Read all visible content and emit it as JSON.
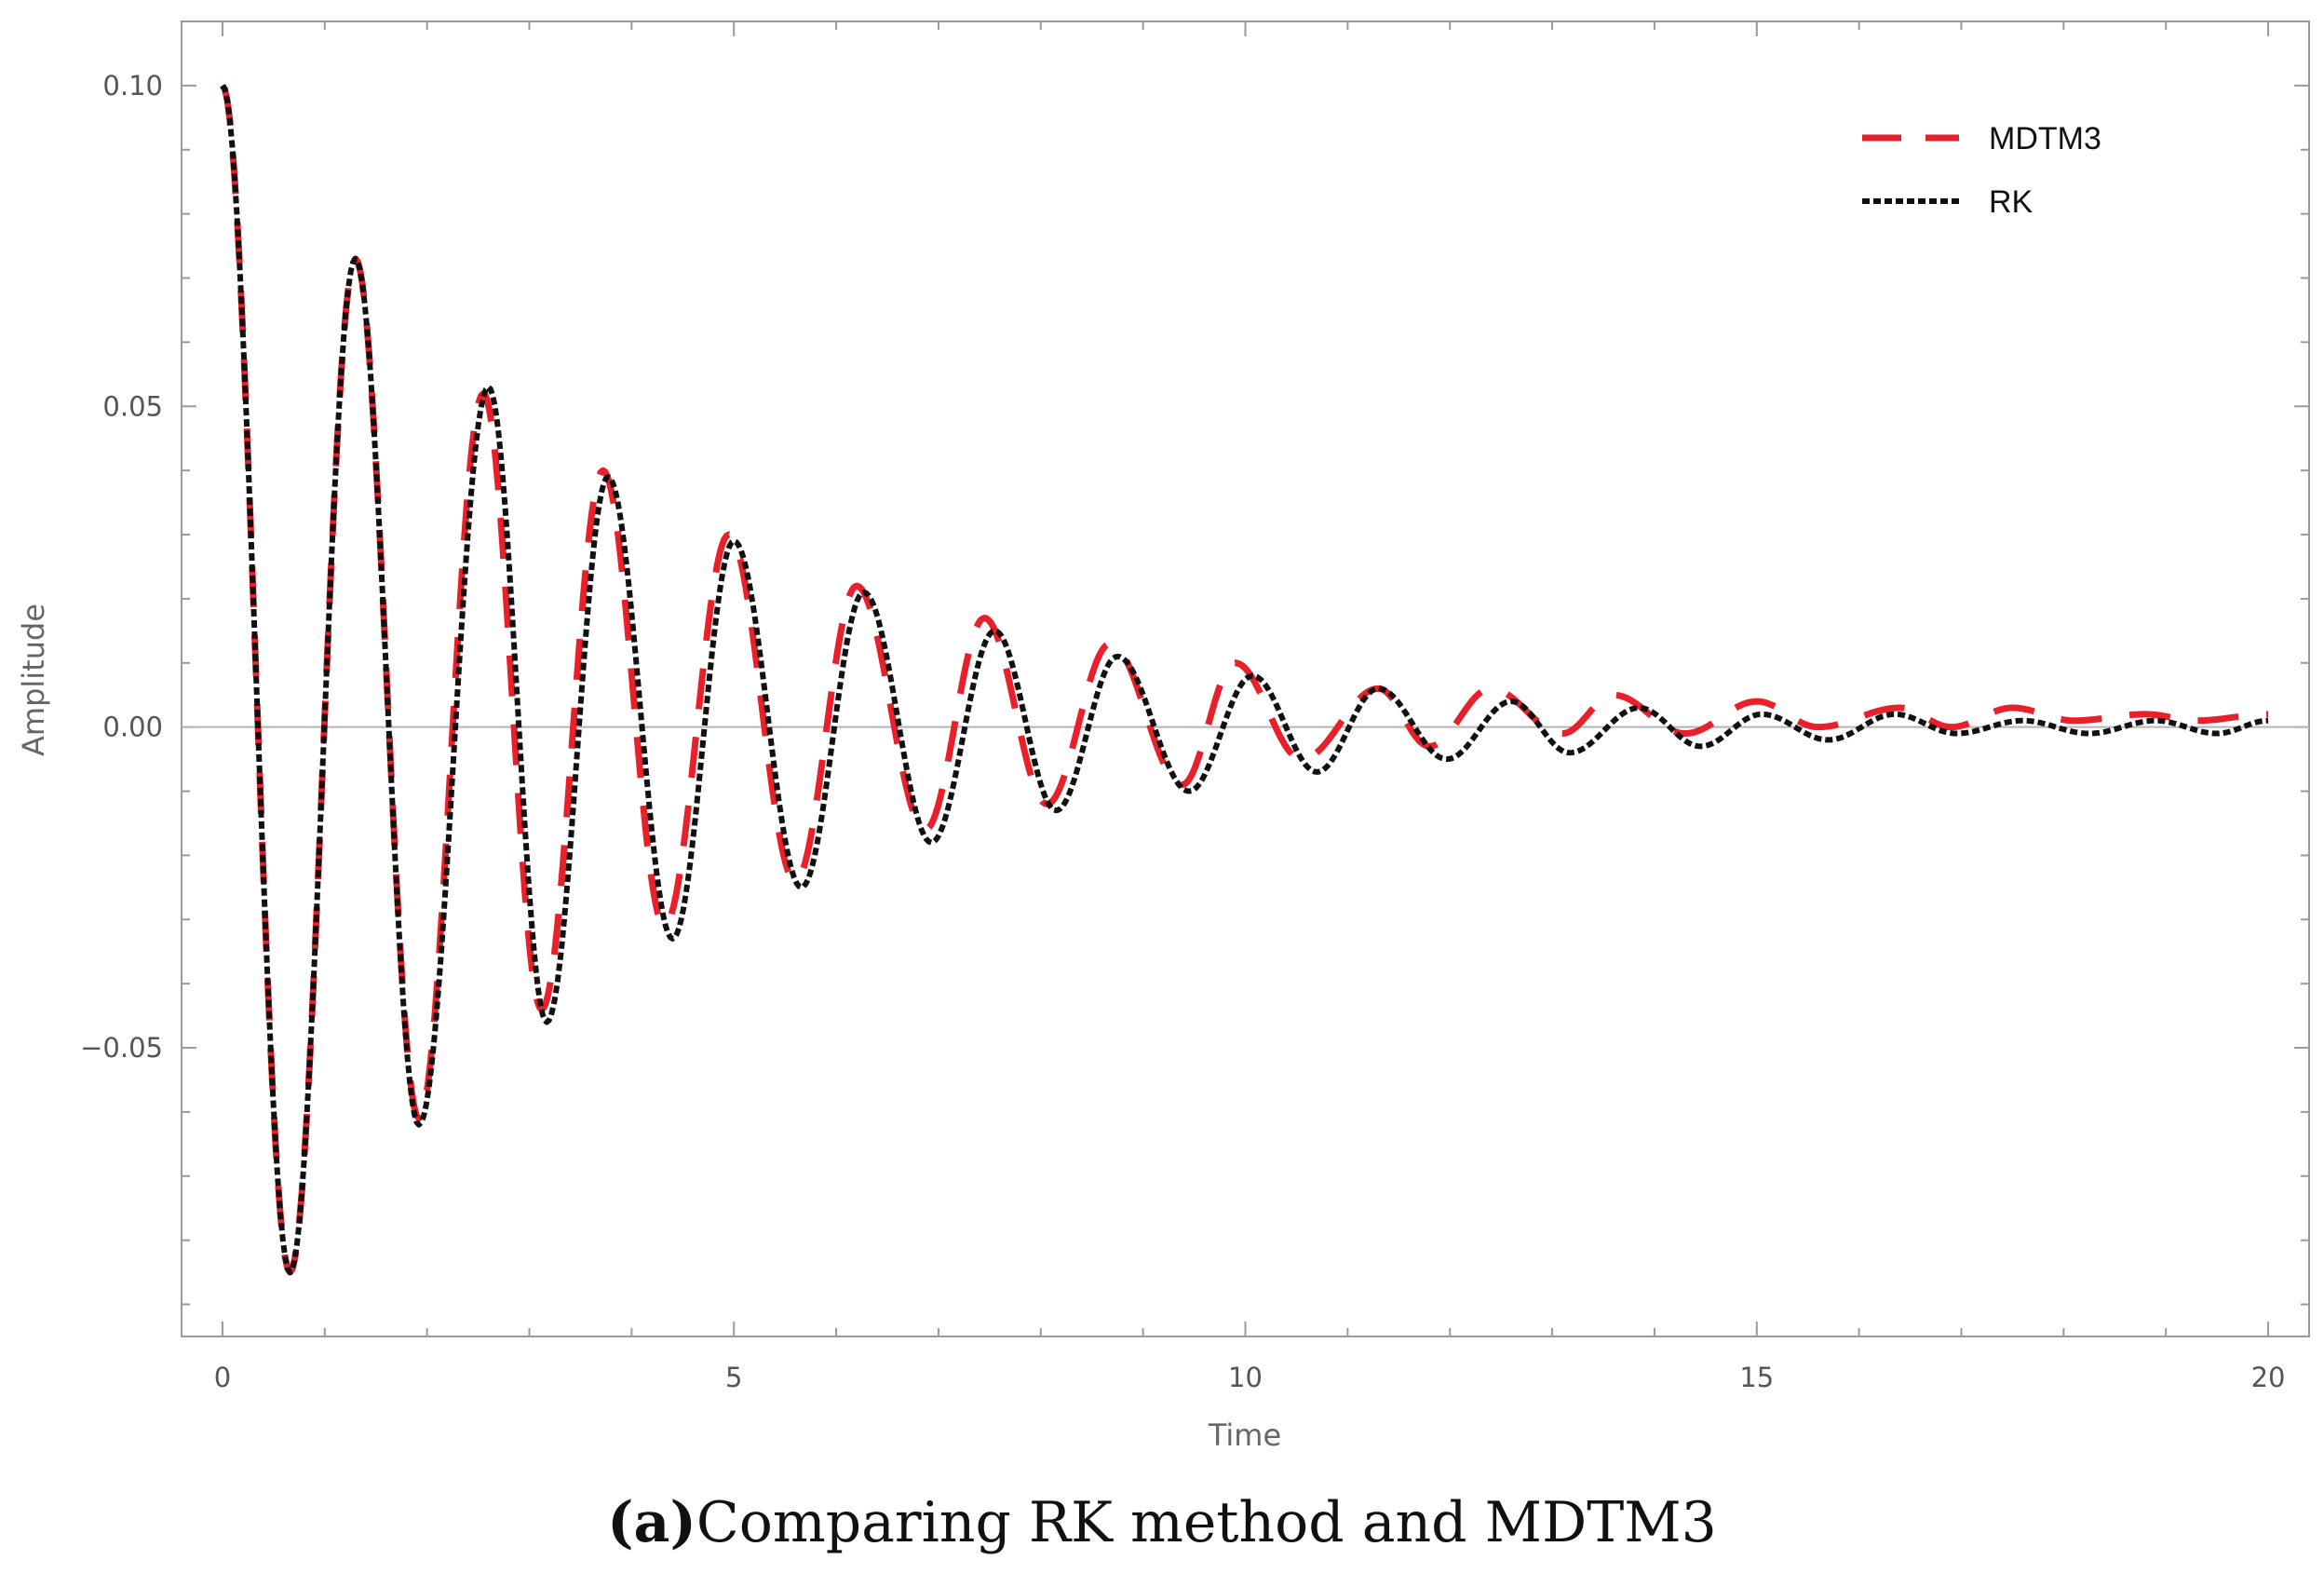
{
  "chart_data": {
    "type": "line",
    "title": "",
    "xlabel": "Time",
    "ylabel": "Amplitude",
    "xlim": [
      -0.4,
      20.4
    ],
    "ylim": [
      -0.095,
      0.11
    ],
    "xticks": [
      0,
      5,
      10,
      15,
      20
    ],
    "xtick_labels": [
      "0",
      "5",
      "10",
      "15",
      "20"
    ],
    "yticks": [
      0.1,
      0.05,
      0.0,
      -0.05
    ],
    "ytick_labels": [
      "0.10",
      "0.05",
      "0.00",
      "−0.05"
    ],
    "legend_position": "top-right",
    "series": [
      {
        "name": "MDTM3",
        "style": "long-dash",
        "color": "#e8202a",
        "x": [
          0,
          0.66,
          1.3,
          1.92,
          2.55,
          3.12,
          3.72,
          4.32,
          4.95,
          5.6,
          6.2,
          6.87,
          7.45,
          8.06,
          8.68,
          9.38,
          9.9,
          10.55,
          11.3,
          11.8,
          12.4,
          13.1,
          13.6,
          14.3,
          15.0,
          15.6,
          16.4,
          16.9,
          17.5,
          18.1,
          18.8,
          19.3,
          20.0
        ],
        "y": [
          0.1,
          -0.085,
          0.073,
          -0.061,
          0.052,
          -0.044,
          0.04,
          -0.031,
          0.03,
          -0.024,
          0.022,
          -0.016,
          0.017,
          -0.012,
          0.013,
          -0.009,
          0.01,
          -0.005,
          0.006,
          -0.003,
          0.006,
          -0.001,
          0.005,
          -0.001,
          0.004,
          0.0,
          0.003,
          0.0,
          0.003,
          0.001,
          0.002,
          0.001,
          0.002
        ]
      },
      {
        "name": "RK",
        "style": "dotted",
        "color": "#111111",
        "x": [
          0,
          0.66,
          1.3,
          1.92,
          2.6,
          3.17,
          3.77,
          4.4,
          5.0,
          5.66,
          6.27,
          6.93,
          7.55,
          8.15,
          8.75,
          9.45,
          10.07,
          10.7,
          11.3,
          11.97,
          12.6,
          13.17,
          13.85,
          14.45,
          15.05,
          15.7,
          16.35,
          16.95,
          17.6,
          18.25,
          18.9,
          19.5,
          20.0
        ],
        "y": [
          0.1,
          -0.085,
          0.073,
          -0.062,
          0.053,
          -0.046,
          0.039,
          -0.033,
          0.029,
          -0.025,
          0.021,
          -0.018,
          0.015,
          -0.013,
          0.011,
          -0.01,
          0.008,
          -0.007,
          0.006,
          -0.005,
          0.004,
          -0.004,
          0.003,
          -0.003,
          0.002,
          -0.002,
          0.002,
          -0.001,
          0.001,
          -0.001,
          0.001,
          -0.001,
          0.001
        ]
      }
    ]
  },
  "caption": {
    "label": "(a)",
    "text": "Comparing RK method and MDTM3"
  }
}
